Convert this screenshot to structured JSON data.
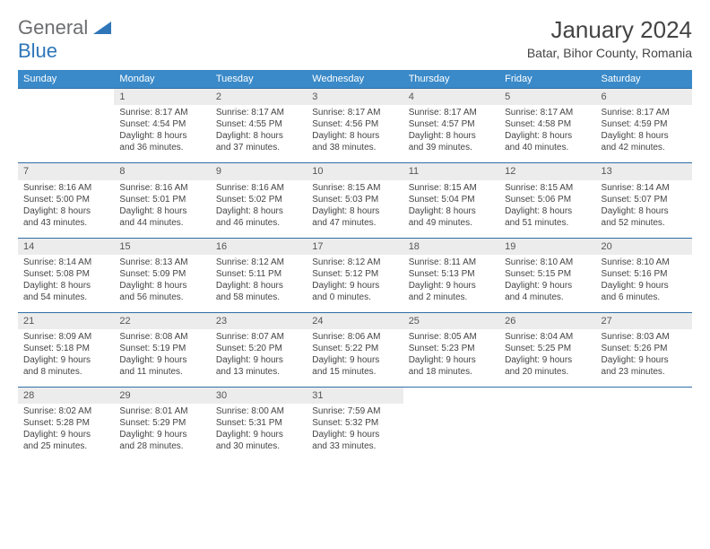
{
  "brand": {
    "part1": "General",
    "part2": "Blue"
  },
  "title": "January 2024",
  "location": "Batar, Bihor County, Romania",
  "colors": {
    "header_bg": "#3a8ac9",
    "header_text": "#ffffff",
    "row_divider": "#2f6fa8",
    "daynum_bg": "#ececec",
    "text": "#444444",
    "brand_gray": "#6d6e71",
    "brand_blue": "#2f76b9"
  },
  "fonts": {
    "base_family": "Arial",
    "title_pt": 26,
    "location_pt": 14,
    "th_pt": 11,
    "cell_pt": 10
  },
  "weekdays": [
    "Sunday",
    "Monday",
    "Tuesday",
    "Wednesday",
    "Thursday",
    "Friday",
    "Saturday"
  ],
  "weeks": [
    [
      {
        "n": "",
        "sr": "",
        "ss": "",
        "d1": "",
        "d2": ""
      },
      {
        "n": "1",
        "sr": "Sunrise: 8:17 AM",
        "ss": "Sunset: 4:54 PM",
        "d1": "Daylight: 8 hours",
        "d2": "and 36 minutes."
      },
      {
        "n": "2",
        "sr": "Sunrise: 8:17 AM",
        "ss": "Sunset: 4:55 PM",
        "d1": "Daylight: 8 hours",
        "d2": "and 37 minutes."
      },
      {
        "n": "3",
        "sr": "Sunrise: 8:17 AM",
        "ss": "Sunset: 4:56 PM",
        "d1": "Daylight: 8 hours",
        "d2": "and 38 minutes."
      },
      {
        "n": "4",
        "sr": "Sunrise: 8:17 AM",
        "ss": "Sunset: 4:57 PM",
        "d1": "Daylight: 8 hours",
        "d2": "and 39 minutes."
      },
      {
        "n": "5",
        "sr": "Sunrise: 8:17 AM",
        "ss": "Sunset: 4:58 PM",
        "d1": "Daylight: 8 hours",
        "d2": "and 40 minutes."
      },
      {
        "n": "6",
        "sr": "Sunrise: 8:17 AM",
        "ss": "Sunset: 4:59 PM",
        "d1": "Daylight: 8 hours",
        "d2": "and 42 minutes."
      }
    ],
    [
      {
        "n": "7",
        "sr": "Sunrise: 8:16 AM",
        "ss": "Sunset: 5:00 PM",
        "d1": "Daylight: 8 hours",
        "d2": "and 43 minutes."
      },
      {
        "n": "8",
        "sr": "Sunrise: 8:16 AM",
        "ss": "Sunset: 5:01 PM",
        "d1": "Daylight: 8 hours",
        "d2": "and 44 minutes."
      },
      {
        "n": "9",
        "sr": "Sunrise: 8:16 AM",
        "ss": "Sunset: 5:02 PM",
        "d1": "Daylight: 8 hours",
        "d2": "and 46 minutes."
      },
      {
        "n": "10",
        "sr": "Sunrise: 8:15 AM",
        "ss": "Sunset: 5:03 PM",
        "d1": "Daylight: 8 hours",
        "d2": "and 47 minutes."
      },
      {
        "n": "11",
        "sr": "Sunrise: 8:15 AM",
        "ss": "Sunset: 5:04 PM",
        "d1": "Daylight: 8 hours",
        "d2": "and 49 minutes."
      },
      {
        "n": "12",
        "sr": "Sunrise: 8:15 AM",
        "ss": "Sunset: 5:06 PM",
        "d1": "Daylight: 8 hours",
        "d2": "and 51 minutes."
      },
      {
        "n": "13",
        "sr": "Sunrise: 8:14 AM",
        "ss": "Sunset: 5:07 PM",
        "d1": "Daylight: 8 hours",
        "d2": "and 52 minutes."
      }
    ],
    [
      {
        "n": "14",
        "sr": "Sunrise: 8:14 AM",
        "ss": "Sunset: 5:08 PM",
        "d1": "Daylight: 8 hours",
        "d2": "and 54 minutes."
      },
      {
        "n": "15",
        "sr": "Sunrise: 8:13 AM",
        "ss": "Sunset: 5:09 PM",
        "d1": "Daylight: 8 hours",
        "d2": "and 56 minutes."
      },
      {
        "n": "16",
        "sr": "Sunrise: 8:12 AM",
        "ss": "Sunset: 5:11 PM",
        "d1": "Daylight: 8 hours",
        "d2": "and 58 minutes."
      },
      {
        "n": "17",
        "sr": "Sunrise: 8:12 AM",
        "ss": "Sunset: 5:12 PM",
        "d1": "Daylight: 9 hours",
        "d2": "and 0 minutes."
      },
      {
        "n": "18",
        "sr": "Sunrise: 8:11 AM",
        "ss": "Sunset: 5:13 PM",
        "d1": "Daylight: 9 hours",
        "d2": "and 2 minutes."
      },
      {
        "n": "19",
        "sr": "Sunrise: 8:10 AM",
        "ss": "Sunset: 5:15 PM",
        "d1": "Daylight: 9 hours",
        "d2": "and 4 minutes."
      },
      {
        "n": "20",
        "sr": "Sunrise: 8:10 AM",
        "ss": "Sunset: 5:16 PM",
        "d1": "Daylight: 9 hours",
        "d2": "and 6 minutes."
      }
    ],
    [
      {
        "n": "21",
        "sr": "Sunrise: 8:09 AM",
        "ss": "Sunset: 5:18 PM",
        "d1": "Daylight: 9 hours",
        "d2": "and 8 minutes."
      },
      {
        "n": "22",
        "sr": "Sunrise: 8:08 AM",
        "ss": "Sunset: 5:19 PM",
        "d1": "Daylight: 9 hours",
        "d2": "and 11 minutes."
      },
      {
        "n": "23",
        "sr": "Sunrise: 8:07 AM",
        "ss": "Sunset: 5:20 PM",
        "d1": "Daylight: 9 hours",
        "d2": "and 13 minutes."
      },
      {
        "n": "24",
        "sr": "Sunrise: 8:06 AM",
        "ss": "Sunset: 5:22 PM",
        "d1": "Daylight: 9 hours",
        "d2": "and 15 minutes."
      },
      {
        "n": "25",
        "sr": "Sunrise: 8:05 AM",
        "ss": "Sunset: 5:23 PM",
        "d1": "Daylight: 9 hours",
        "d2": "and 18 minutes."
      },
      {
        "n": "26",
        "sr": "Sunrise: 8:04 AM",
        "ss": "Sunset: 5:25 PM",
        "d1": "Daylight: 9 hours",
        "d2": "and 20 minutes."
      },
      {
        "n": "27",
        "sr": "Sunrise: 8:03 AM",
        "ss": "Sunset: 5:26 PM",
        "d1": "Daylight: 9 hours",
        "d2": "and 23 minutes."
      }
    ],
    [
      {
        "n": "28",
        "sr": "Sunrise: 8:02 AM",
        "ss": "Sunset: 5:28 PM",
        "d1": "Daylight: 9 hours",
        "d2": "and 25 minutes."
      },
      {
        "n": "29",
        "sr": "Sunrise: 8:01 AM",
        "ss": "Sunset: 5:29 PM",
        "d1": "Daylight: 9 hours",
        "d2": "and 28 minutes."
      },
      {
        "n": "30",
        "sr": "Sunrise: 8:00 AM",
        "ss": "Sunset: 5:31 PM",
        "d1": "Daylight: 9 hours",
        "d2": "and 30 minutes."
      },
      {
        "n": "31",
        "sr": "Sunrise: 7:59 AM",
        "ss": "Sunset: 5:32 PM",
        "d1": "Daylight: 9 hours",
        "d2": "and 33 minutes."
      },
      {
        "n": "",
        "sr": "",
        "ss": "",
        "d1": "",
        "d2": ""
      },
      {
        "n": "",
        "sr": "",
        "ss": "",
        "d1": "",
        "d2": ""
      },
      {
        "n": "",
        "sr": "",
        "ss": "",
        "d1": "",
        "d2": ""
      }
    ]
  ]
}
